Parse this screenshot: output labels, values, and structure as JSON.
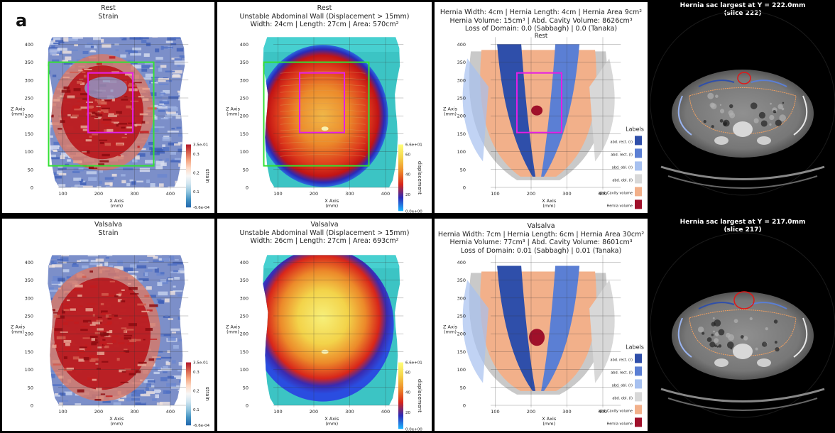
{
  "figure_label": "a",
  "axes": {
    "x_axis_label": "X Axis",
    "z_axis_label": "Z Axis",
    "unit": "(mm)",
    "x_ticks": [
      "100",
      "200",
      "300",
      "400"
    ],
    "z_ticks": [
      "0",
      "50",
      "100",
      "150",
      "200",
      "250",
      "300",
      "350",
      "400"
    ]
  },
  "strain_colorbar": {
    "title": "strain",
    "max": "3.5e-01",
    "min": "-6.6e-04",
    "ticks": [
      "0.3",
      "0.2",
      "0.1"
    ]
  },
  "displacement_colorbar": {
    "title": "displacement",
    "max": "6.6e+01",
    "min": "0.0e+00",
    "ticks": [
      "60",
      "40",
      "20"
    ]
  },
  "labels_legend": {
    "title": "Labels",
    "items": [
      {
        "label": "abd. rect. (r)",
        "color": "#2f4faa"
      },
      {
        "label": "abd. rect. (l)",
        "color": "#5b7fd4"
      },
      {
        "label": "abd. obl. (r)",
        "color": "#a7c1f0"
      },
      {
        "label": "abd. obl. (l)",
        "color": "#d8d8d8"
      },
      {
        "label": "abd. Cavity volume",
        "color": "#f2b08a"
      },
      {
        "label": "Hernia volume",
        "color": "#a0102a"
      }
    ]
  },
  "rows": [
    {
      "strain": {
        "line1": "Rest",
        "line2": "Strain"
      },
      "displacement": {
        "line1": "Rest",
        "line2": "Unstable Abdominal Wall (Displacement > 15mm)",
        "line3": "Width: 24cm  |  Length: 27cm  |  Area: 570cm²"
      },
      "labels": {
        "line1": "Hernia Width: 4cm  |  Hernia Length: 4cm  |  Hernia Area 9cm²",
        "line2": "Hernia Volume: 15cm³  |  Abd. Cavity Volume: 8626cm³",
        "line3": "Loss of Domain: 0.0 (Sabbagh)  |  0.0 (Tanaka)",
        "line4": "Rest"
      },
      "ct": {
        "line1": "Hernia sac largest at Y = 222.0mm",
        "line2": "(slice 222)"
      }
    },
    {
      "strain": {
        "line1": "Valsalva",
        "line2": "Strain"
      },
      "displacement": {
        "line1": "Valsalva",
        "line2": "Unstable Abdominal Wall (Displacement > 15mm)",
        "line3": "Width: 26cm  |  Length: 27cm  |  Area: 693cm²"
      },
      "labels": {
        "line1": "Valsalva",
        "line2": "Hernia Width: 7cm  |  Hernia Length: 6cm  |  Hernia Area 30cm²",
        "line3": "Hernia Volume: 77cm³  |  Abd. Cavity Volume: 8601cm³",
        "line4": "Loss of Domain: 0.01 (Sabbagh)  |  0.01 (Tanaka)"
      },
      "ct": {
        "line1": "Hernia sac largest at Y = 217.0mm",
        "line2": "(slice 217)"
      }
    }
  ]
}
